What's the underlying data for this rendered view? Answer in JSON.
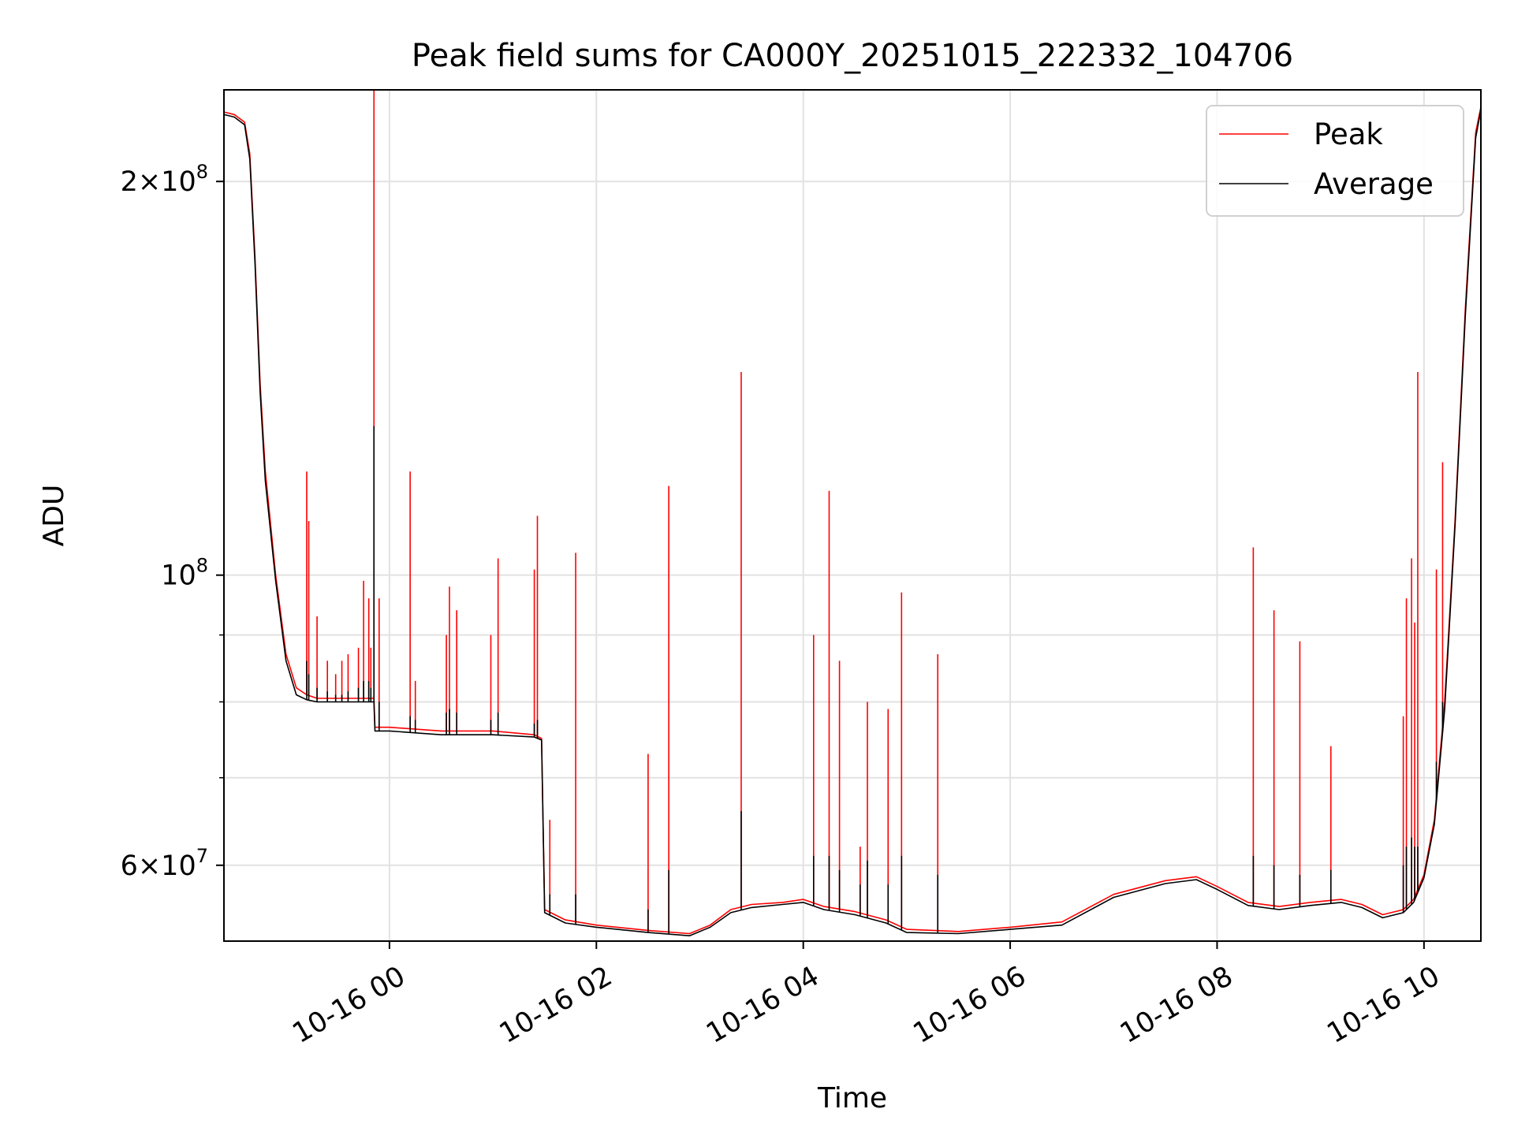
{
  "chart_data": {
    "type": "line",
    "title": "Peak field sums for CA000Y_20251015_222332_104706",
    "xlabel": "Time",
    "ylabel": "ADU",
    "yscale": "log",
    "grid": true,
    "legend_position": "upper right",
    "xlim_hours": [
      -1.6,
      10.55
    ],
    "ylim": [
      52500000,
      235000000
    ],
    "x_ticks": [
      {
        "hour": 0,
        "label": "10-16 00"
      },
      {
        "hour": 2,
        "label": "10-16 02"
      },
      {
        "hour": 4,
        "label": "10-16 04"
      },
      {
        "hour": 6,
        "label": "10-16 06"
      },
      {
        "hour": 8,
        "label": "10-16 08"
      },
      {
        "hour": 10,
        "label": "10-16 10"
      }
    ],
    "y_major_ticks": [
      {
        "value": 60000000,
        "mantissa": "6",
        "exp": "7"
      },
      {
        "value": 100000000,
        "mantissa": "",
        "exp": "8"
      },
      {
        "value": 200000000,
        "mantissa": "2",
        "exp": "8"
      }
    ],
    "y_minor_ticks": [
      70000000,
      80000000,
      90000000
    ],
    "legend": [
      {
        "name": "Peak",
        "color": "#ff0000"
      },
      {
        "name": "Average",
        "color": "#000000"
      }
    ],
    "baseline": {
      "x": [
        -1.6,
        -1.5,
        -1.4,
        -1.35,
        -1.3,
        -1.25,
        -1.2,
        -1.1,
        -1.0,
        -0.9,
        -0.8,
        -0.7,
        -0.6,
        -0.3,
        -0.15,
        -0.14,
        0.0,
        0.5,
        1.0,
        1.4,
        1.47,
        1.5,
        1.7,
        2.0,
        2.5,
        2.9,
        3.1,
        3.3,
        3.5,
        3.8,
        4.0,
        4.2,
        4.5,
        4.8,
        5.0,
        5.5,
        6.0,
        6.5,
        7.0,
        7.5,
        7.8,
        8.0,
        8.3,
        8.6,
        8.9,
        9.2,
        9.4,
        9.6,
        9.8,
        9.9,
        10.0,
        10.1,
        10.2,
        10.3,
        10.4,
        10.5,
        10.55
      ],
      "peak": [
        226000000,
        225000000,
        222000000,
        210000000,
        175000000,
        140000000,
        120000000,
        100000000,
        87000000,
        82000000,
        81000000,
        80500000,
        80500000,
        80500000,
        80500000,
        76500000,
        76500000,
        76000000,
        76000000,
        75500000,
        75000000,
        55500000,
        54500000,
        54000000,
        53500000,
        53200000,
        54000000,
        55500000,
        56000000,
        56200000,
        56500000,
        55800000,
        55300000,
        54500000,
        53600000,
        53400000,
        53800000,
        54300000,
        57000000,
        58400000,
        58800000,
        57800000,
        56200000,
        55800000,
        56200000,
        56500000,
        56000000,
        55000000,
        55500000,
        56500000,
        59000000,
        65000000,
        80000000,
        110000000,
        160000000,
        218000000,
        228000000
      ],
      "average": [
        225000000,
        224000000,
        221000000,
        208000000,
        173000000,
        138000000,
        118000000,
        99000000,
        86000000,
        81000000,
        80300000,
        80000000,
        80000000,
        80000000,
        80000000,
        76000000,
        76000000,
        75500000,
        75500000,
        75200000,
        74800000,
        55200000,
        54200000,
        53800000,
        53300000,
        53000000,
        53800000,
        55200000,
        55700000,
        56000000,
        56200000,
        55500000,
        55000000,
        54200000,
        53300000,
        53200000,
        53600000,
        54000000,
        56700000,
        58100000,
        58500000,
        57500000,
        55900000,
        55500000,
        55900000,
        56200000,
        55700000,
        54700000,
        55200000,
        56200000,
        58700000,
        64500000,
        79000000,
        109000000,
        158000000,
        216000000,
        227000000
      ]
    },
    "spikes": [
      {
        "x": -0.8,
        "peak": 120000000,
        "average": 86000000
      },
      {
        "x": -0.78,
        "peak": 110000000,
        "average": 84000000
      },
      {
        "x": -0.7,
        "peak": 93000000,
        "average": 82000000
      },
      {
        "x": -0.6,
        "peak": 86000000,
        "average": 81500000
      },
      {
        "x": -0.52,
        "peak": 84000000,
        "average": 81000000
      },
      {
        "x": -0.46,
        "peak": 86000000,
        "average": 81000000
      },
      {
        "x": -0.4,
        "peak": 87000000,
        "average": 81500000
      },
      {
        "x": -0.3,
        "peak": 88000000,
        "average": 82000000
      },
      {
        "x": -0.25,
        "peak": 99000000,
        "average": 83000000
      },
      {
        "x": -0.2,
        "peak": 96000000,
        "average": 83000000
      },
      {
        "x": -0.18,
        "peak": 88000000,
        "average": 82000000
      },
      {
        "x": -0.15,
        "peak": 235000000,
        "average": 130000000
      },
      {
        "x": -0.1,
        "peak": 96000000,
        "average": 80000000
      },
      {
        "x": 0.2,
        "peak": 120000000,
        "average": 78000000
      },
      {
        "x": 0.25,
        "peak": 83000000,
        "average": 77500000
      },
      {
        "x": 0.55,
        "peak": 90000000,
        "average": 78500000
      },
      {
        "x": 0.58,
        "peak": 98000000,
        "average": 79000000
      },
      {
        "x": 0.65,
        "peak": 94000000,
        "average": 78500000
      },
      {
        "x": 0.98,
        "peak": 90000000,
        "average": 77500000
      },
      {
        "x": 1.05,
        "peak": 103000000,
        "average": 78500000
      },
      {
        "x": 1.4,
        "peak": 101000000,
        "average": 77000000
      },
      {
        "x": 1.43,
        "peak": 111000000,
        "average": 77500000
      },
      {
        "x": 1.55,
        "peak": 65000000,
        "average": 57000000
      },
      {
        "x": 1.8,
        "peak": 104000000,
        "average": 57000000
      },
      {
        "x": 2.5,
        "peak": 73000000,
        "average": 55500000
      },
      {
        "x": 2.7,
        "peak": 117000000,
        "average": 59500000
      },
      {
        "x": 3.4,
        "peak": 143000000,
        "average": 66000000
      },
      {
        "x": 4.1,
        "peak": 90000000,
        "average": 61000000
      },
      {
        "x": 4.25,
        "peak": 116000000,
        "average": 61000000
      },
      {
        "x": 4.35,
        "peak": 86000000,
        "average": 59500000
      },
      {
        "x": 4.55,
        "peak": 62000000,
        "average": 58000000
      },
      {
        "x": 4.62,
        "peak": 80000000,
        "average": 60500000
      },
      {
        "x": 4.82,
        "peak": 79000000,
        "average": 58000000
      },
      {
        "x": 4.95,
        "peak": 97000000,
        "average": 61000000
      },
      {
        "x": 5.3,
        "peak": 87000000,
        "average": 59000000
      },
      {
        "x": 8.35,
        "peak": 105000000,
        "average": 61000000
      },
      {
        "x": 8.55,
        "peak": 94000000,
        "average": 60000000
      },
      {
        "x": 8.8,
        "peak": 89000000,
        "average": 59000000
      },
      {
        "x": 9.1,
        "peak": 74000000,
        "average": 59500000
      },
      {
        "x": 9.8,
        "peak": 78000000,
        "average": 60000000
      },
      {
        "x": 9.83,
        "peak": 96000000,
        "average": 62000000
      },
      {
        "x": 9.88,
        "peak": 103000000,
        "average": 63000000
      },
      {
        "x": 9.91,
        "peak": 92000000,
        "average": 62000000
      },
      {
        "x": 9.94,
        "peak": 143000000,
        "average": 62000000
      },
      {
        "x": 10.12,
        "peak": 101000000,
        "average": 72000000
      },
      {
        "x": 10.18,
        "peak": 122000000,
        "average": 80000000
      }
    ]
  }
}
